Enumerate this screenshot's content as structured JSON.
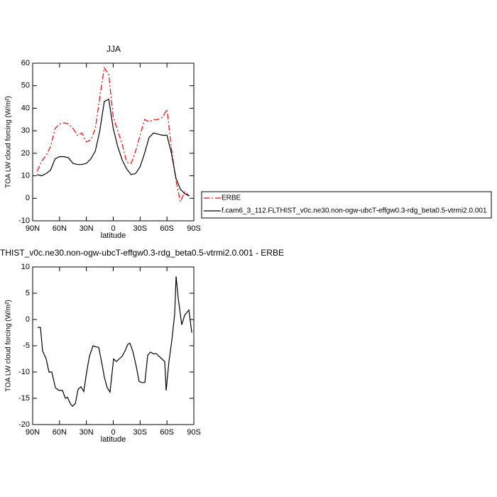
{
  "chart_data": [
    {
      "type": "line",
      "title": "JJA",
      "xlabel": "latitude",
      "ylabel": "TOA LW cloud forcing (W/m²)",
      "x": [
        85,
        80,
        75,
        70,
        65,
        60,
        55,
        50,
        45,
        40,
        35,
        30,
        25,
        20,
        15,
        10,
        5,
        0,
        -5,
        -10,
        -15,
        -20,
        -25,
        -30,
        -35,
        -40,
        -45,
        -50,
        -55,
        -60,
        -65,
        -70,
        -75,
        -80,
        -85
      ],
      "series": [
        {
          "name": "ERBE",
          "color": "#ff0000",
          "line_style": "dashed",
          "values": [
            12,
            16.5,
            19,
            23,
            31,
            33,
            33.5,
            33,
            31,
            28,
            29,
            25,
            26,
            31,
            45,
            58,
            55,
            36,
            30,
            24,
            16,
            15.5,
            21,
            28,
            35,
            34,
            35,
            35,
            36,
            39.5,
            22,
            8,
            -1.5,
            3,
            1
          ]
        },
        {
          "name": "f.cam6_3_112.FLTHIST_v0c.ne30.non-ogw-ubcT-effgw0.3-rdg_beta0.5-vtrmi2.0.001",
          "color": "#000000",
          "line_style": "solid",
          "values": [
            10.5,
            10,
            11,
            12.5,
            17.5,
            18.5,
            18.5,
            18,
            15.5,
            15,
            15,
            15.5,
            17.5,
            21,
            30,
            43,
            44,
            31,
            23,
            17,
            13,
            10.5,
            11,
            14,
            20,
            27,
            29,
            28.5,
            28,
            28,
            20,
            9,
            4,
            2,
            1
          ]
        }
      ],
      "xlim": [
        90,
        -90
      ],
      "xticks": [
        {
          "value": 90,
          "label": "90N"
        },
        {
          "value": 60,
          "label": "60N"
        },
        {
          "value": 30,
          "label": "30N"
        },
        0,
        {
          "value": -30,
          "label": "30S"
        },
        {
          "value": -60,
          "label": "60S"
        },
        {
          "value": -90,
          "label": "90S"
        }
      ],
      "ylim": [
        -10,
        60
      ],
      "yticks": [
        -10,
        0,
        10,
        20,
        30,
        40,
        50,
        60
      ],
      "legend": "right"
    },
    {
      "type": "line",
      "title": "THIST_v0c.ne30.non-ogw-ubcT-effgw0.3-rdg_beta0.5-vtrmi2.0.001 - ERBE",
      "xlabel": "latitude",
      "ylabel": "TOA LW cloud forcing (W/m²)",
      "x": [
        84.5,
        81.3,
        78.9,
        74.9,
        71.8,
        68.6,
        64.6,
        60.7,
        56.7,
        53.5,
        51.1,
        48,
        45.6,
        42.4,
        39.3,
        36.1,
        32.9,
        29.7,
        26.6,
        22.6,
        19.4,
        16.2,
        13.1,
        9.9,
        6.7,
        3.6,
        -0.4,
        -3.6,
        -6.7,
        -9.9,
        -13.1,
        -16.3,
        -18.6,
        -21.8,
        -25.8,
        -28.9,
        -32.1,
        -35.3,
        -38.5,
        -41.6,
        -44.8,
        -48,
        -51.1,
        -54.3,
        -57.5,
        -59.1,
        -62.2,
        -65.4,
        -68.6,
        -70.2,
        -72.6,
        -76.5,
        -79.7,
        -82.9,
        -84.5,
        -87.7
      ],
      "series": [
        {
          "color": "#000000",
          "line_style": "solid",
          "values": [
            -1.5,
            -1.5,
            -6,
            -7.5,
            -10,
            -10,
            -13,
            -13.5,
            -13.5,
            -15,
            -14.8,
            -16,
            -16.5,
            -16,
            -13.3,
            -12.8,
            -13.7,
            -10,
            -7,
            -5,
            -5.2,
            -5.3,
            -8,
            -11,
            -13,
            -13.8,
            -7.5,
            -8,
            -7.5,
            -7,
            -6,
            -4.7,
            -4.5,
            -6,
            -9,
            -11.8,
            -12,
            -12,
            -6.8,
            -6.2,
            -6.5,
            -6.5,
            -7,
            -7.5,
            -8,
            -13.5,
            -8,
            -4,
            1,
            8.2,
            4,
            -1,
            0.8,
            1.5,
            1.8,
            -2.5
          ]
        }
      ],
      "xlim": [
        90,
        -90
      ],
      "xticks": [
        {
          "value": 90,
          "label": "90N"
        },
        {
          "value": 60,
          "label": "60N"
        },
        {
          "value": 30,
          "label": "30N"
        },
        0,
        {
          "value": -30,
          "label": "30S"
        },
        {
          "value": -60,
          "label": "60S"
        },
        {
          "value": -90,
          "label": "90S"
        }
      ],
      "ylim": [
        -20,
        10
      ],
      "yticks": [
        -20,
        -15,
        -10,
        -5,
        0,
        5,
        10
      ]
    }
  ]
}
